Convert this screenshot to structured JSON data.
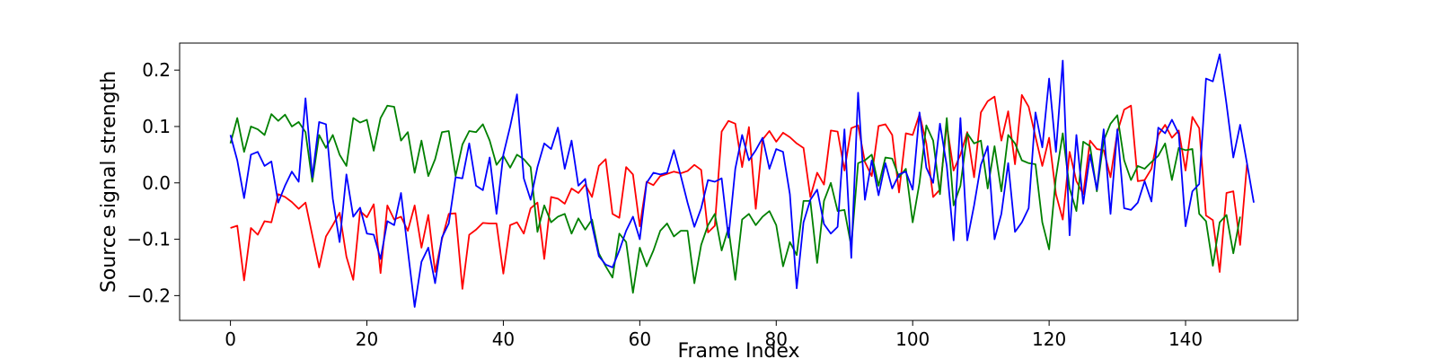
{
  "chart_data": {
    "type": "line",
    "title": "",
    "xlabel": "Frame Index",
    "ylabel": "Source signal strength",
    "xlim": [
      -7.45,
      156.45
    ],
    "ylim": [
      -0.244,
      0.248
    ],
    "grid": false,
    "legend": "none",
    "x_ticks": [
      0,
      20,
      40,
      60,
      80,
      100,
      120,
      140
    ],
    "x_tick_labels": [
      "0",
      "20",
      "40",
      "60",
      "80",
      "100",
      "120",
      "140"
    ],
    "y_ticks": [
      -0.2,
      -0.1,
      0.0,
      0.1,
      0.2
    ],
    "y_tick_labels": [
      "−0.2",
      "−0.1",
      "0.0",
      "0.1",
      "0.2"
    ],
    "x_start": 0,
    "x_step": 1,
    "series": [
      {
        "color": "#ff0000",
        "values": [
          -0.08,
          -0.076,
          -0.173,
          -0.08,
          -0.092,
          -0.068,
          -0.07,
          -0.02,
          -0.025,
          -0.034,
          -0.046,
          -0.035,
          -0.093,
          -0.15,
          -0.095,
          -0.075,
          -0.053,
          -0.131,
          -0.172,
          -0.05,
          -0.061,
          -0.038,
          -0.16,
          -0.04,
          -0.065,
          -0.06,
          -0.085,
          -0.04,
          -0.115,
          -0.057,
          -0.158,
          -0.1,
          -0.055,
          -0.054,
          -0.188,
          -0.092,
          -0.083,
          -0.071,
          -0.072,
          -0.072,
          -0.161,
          -0.075,
          -0.07,
          -0.09,
          -0.045,
          -0.035,
          -0.135,
          -0.025,
          -0.028,
          -0.037,
          -0.01,
          -0.018,
          -0.003,
          -0.025,
          0.03,
          0.042,
          -0.055,
          -0.062,
          0.028,
          0.015,
          -0.077,
          0.002,
          -0.004,
          0.012,
          0.016,
          0.02,
          0.017,
          0.021,
          0.032,
          0.023,
          -0.088,
          -0.076,
          0.091,
          0.11,
          0.105,
          0.028,
          0.099,
          -0.046,
          0.077,
          0.092,
          0.073,
          0.089,
          0.081,
          0.07,
          0.062,
          -0.025,
          0.018,
          -0.003,
          0.093,
          0.091,
          0.022,
          0.097,
          0.102,
          0.037,
          0.012,
          0.101,
          0.104,
          0.085,
          -0.017,
          0.088,
          0.085,
          0.122,
          0.07,
          -0.025,
          -0.012,
          0.103,
          0.022,
          0.05,
          0.09,
          0.01,
          0.125,
          0.145,
          0.153,
          0.075,
          0.127,
          0.033,
          0.156,
          0.135,
          0.082,
          0.03,
          0.08,
          -0.02,
          -0.065,
          0.055,
          0.003,
          -0.02,
          0.075,
          0.06,
          0.058,
          0.01,
          0.09,
          0.13,
          0.137,
          0.003,
          0.005,
          0.025,
          0.085,
          0.103,
          0.08,
          0.093,
          0.022,
          0.117,
          0.097,
          -0.058,
          -0.066,
          -0.158,
          -0.018,
          -0.015,
          -0.11,
          0.033
        ]
      },
      {
        "color": "#008000",
        "values": [
          0.07,
          0.115,
          0.055,
          0.1,
          0.095,
          0.085,
          0.122,
          0.11,
          0.121,
          0.1,
          0.108,
          0.09,
          0.002,
          0.085,
          0.062,
          0.085,
          0.05,
          0.03,
          0.115,
          0.107,
          0.112,
          0.057,
          0.115,
          0.137,
          0.135,
          0.075,
          0.09,
          0.018,
          0.075,
          0.012,
          0.042,
          0.09,
          0.092,
          0.012,
          0.068,
          0.092,
          0.09,
          0.104,
          0.075,
          0.032,
          0.048,
          0.027,
          0.05,
          0.042,
          0.028,
          -0.087,
          -0.04,
          -0.07,
          -0.06,
          -0.055,
          -0.09,
          -0.063,
          -0.083,
          -0.065,
          -0.125,
          -0.148,
          -0.168,
          -0.09,
          -0.105,
          -0.195,
          -0.115,
          -0.148,
          -0.12,
          -0.085,
          -0.072,
          -0.095,
          -0.085,
          -0.085,
          -0.178,
          -0.11,
          -0.075,
          -0.055,
          -0.12,
          -0.08,
          -0.172,
          -0.065,
          -0.055,
          -0.075,
          -0.06,
          -0.05,
          -0.075,
          -0.148,
          -0.105,
          -0.128,
          -0.032,
          -0.032,
          -0.142,
          -0.032,
          0.0,
          -0.05,
          -0.048,
          -0.113,
          0.035,
          0.04,
          0.05,
          -0.005,
          0.045,
          0.043,
          0.01,
          0.025,
          -0.07,
          0.0,
          0.102,
          0.075,
          -0.02,
          0.115,
          -0.04,
          -0.005,
          0.088,
          0.07,
          0.075,
          -0.01,
          0.065,
          -0.015,
          0.085,
          0.07,
          0.04,
          0.035,
          0.033,
          -0.07,
          -0.118,
          0.01,
          0.088,
          -0.01,
          -0.05,
          0.073,
          0.065,
          -0.015,
          0.075,
          0.105,
          0.12,
          0.04,
          0.005,
          0.03,
          0.025,
          0.037,
          0.048,
          0.07,
          0.005,
          0.062,
          0.058,
          0.06,
          -0.055,
          -0.068,
          -0.147,
          -0.07,
          -0.057,
          -0.125,
          -0.06
        ]
      },
      {
        "color": "#0000ff",
        "values": [
          0.085,
          0.04,
          -0.027,
          0.05,
          0.055,
          0.03,
          0.038,
          -0.035,
          -0.005,
          0.02,
          0.002,
          0.15,
          0.01,
          0.108,
          0.104,
          -0.028,
          -0.105,
          0.015,
          -0.06,
          -0.044,
          -0.09,
          -0.092,
          -0.135,
          -0.068,
          -0.075,
          -0.018,
          -0.12,
          -0.22,
          -0.14,
          -0.115,
          -0.178,
          -0.097,
          -0.072,
          0.01,
          0.008,
          0.07,
          -0.005,
          -0.013,
          0.045,
          -0.055,
          0.05,
          0.1,
          0.157,
          0.008,
          -0.03,
          0.028,
          0.07,
          0.06,
          0.098,
          0.025,
          0.075,
          -0.005,
          0.007,
          -0.075,
          -0.13,
          -0.145,
          -0.15,
          -0.12,
          -0.085,
          -0.06,
          -0.1,
          0.0,
          0.018,
          0.015,
          0.018,
          0.058,
          0.013,
          -0.035,
          -0.078,
          -0.045,
          0.005,
          0.002,
          0.008,
          -0.097,
          0.025,
          0.085,
          0.04,
          0.058,
          0.08,
          0.025,
          0.06,
          0.055,
          -0.02,
          -0.187,
          -0.07,
          -0.03,
          -0.012,
          -0.073,
          -0.09,
          -0.078,
          0.095,
          -0.133,
          0.16,
          -0.03,
          0.04,
          -0.022,
          0.035,
          -0.01,
          0.015,
          0.02,
          -0.012,
          0.125,
          0.027,
          0.0,
          0.105,
          0.03,
          -0.102,
          0.115,
          -0.102,
          -0.04,
          0.032,
          0.065,
          -0.1,
          -0.055,
          0.035,
          -0.087,
          -0.07,
          -0.045,
          0.125,
          0.063,
          0.185,
          0.055,
          0.217,
          -0.093,
          0.085,
          -0.037,
          0.05,
          -0.012,
          0.095,
          -0.055,
          0.095,
          -0.045,
          -0.048,
          -0.035,
          0.003,
          -0.033,
          0.098,
          0.088,
          0.112,
          0.087,
          -0.077,
          -0.015,
          -0.002,
          0.185,
          0.18,
          0.228,
          0.14,
          0.045,
          0.103,
          0.035,
          -0.035
        ]
      }
    ]
  }
}
